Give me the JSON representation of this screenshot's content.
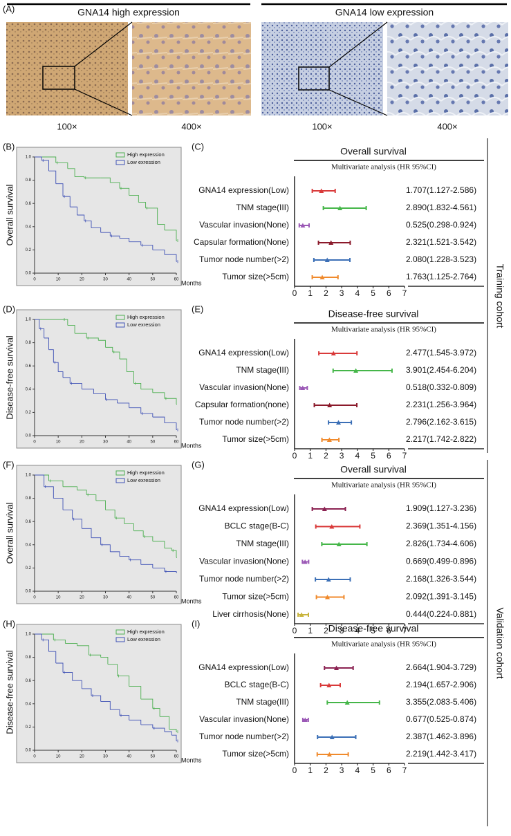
{
  "figure": {
    "panel": "(A)",
    "headers": [
      "GNA14 high expression",
      "GNA14 low expression"
    ],
    "magnifications": [
      "100×",
      "400×",
      "100×",
      "400×"
    ],
    "cohorts": [
      "Training cohort",
      "Validation cohort"
    ]
  },
  "chart_data": [
    {
      "type": "line",
      "panel": "(B)",
      "ylabel": "Overall survival",
      "xlabel": "Months",
      "xlim": [
        0,
        60
      ],
      "xticks": [
        0,
        10,
        20,
        30,
        40,
        50,
        60
      ],
      "ylim": [
        0,
        1
      ],
      "yticks": [
        {
          "value": 0,
          "label": "0.0"
        },
        {
          "value": 0.2,
          "label": "0.2"
        },
        {
          "value": 0.4,
          "label": "0.4"
        },
        {
          "value": 0.6,
          "label": "0.6"
        },
        {
          "value": 0.8,
          "label": "0.8"
        },
        {
          "value": 1,
          "label": "1.0"
        }
      ],
      "series": [
        {
          "name": "High expression",
          "color": "#4caf50",
          "x": [
            0,
            9,
            14,
            17,
            21,
            28,
            32,
            36,
            40,
            44,
            47,
            52,
            55,
            60
          ],
          "values": [
            1,
            0.95,
            0.9,
            0.83,
            0.82,
            0.82,
            0.78,
            0.73,
            0.67,
            0.61,
            0.56,
            0.42,
            0.37,
            0.28
          ]
        },
        {
          "name": "Low exression",
          "color": "#3f51b5",
          "x": [
            0,
            3,
            6,
            9,
            12,
            15,
            18,
            21,
            24,
            28,
            32,
            36,
            40,
            45,
            50,
            55,
            60
          ],
          "values": [
            1,
            0.97,
            0.88,
            0.77,
            0.66,
            0.57,
            0.5,
            0.45,
            0.39,
            0.35,
            0.32,
            0.3,
            0.27,
            0.24,
            0.2,
            0.16,
            0.1
          ]
        }
      ]
    },
    {
      "type": "forest",
      "panel": "(C)",
      "title": "Overall survival",
      "subtitle": "Multivariate analysis (HR 95%CI)",
      "xlim": [
        0,
        7
      ],
      "xticks": [
        0,
        1,
        2,
        3,
        4,
        5,
        6,
        7
      ],
      "categories": [
        "GNA14 expression(Low)",
        "TNM stage(III)",
        "Vascular invasion(None)",
        "Capsular formation(None)",
        "Tumor node number(>2)",
        "Tumor size(>5cm)"
      ],
      "values": [
        1.707,
        2.89,
        0.525,
        2.321,
        2.08,
        1.763
      ],
      "lower": [
        1.127,
        1.832,
        0.298,
        1.521,
        1.228,
        1.125
      ],
      "upper": [
        2.586,
        4.561,
        0.924,
        3.542,
        3.523,
        2.764
      ],
      "value_labels": [
        "1.707(1.127-2.586)",
        "2.890(1.832-4.561)",
        "0.525(0.298-0.924)",
        "2.321(1.521-3.542)",
        "2.080(1.228-3.523)",
        "1.763(1.125-2.764)"
      ],
      "colors": [
        "#d93a3a",
        "#45b649",
        "#9b59b6",
        "#8b1a2b",
        "#3b6fb6",
        "#f08a2c"
      ]
    },
    {
      "type": "line",
      "panel": "(D)",
      "ylabel": "Disease-free survival",
      "xlabel": "Months",
      "xlim": [
        0,
        60
      ],
      "xticks": [
        0,
        10,
        20,
        30,
        40,
        50,
        60
      ],
      "ylim": [
        0,
        1
      ],
      "yticks": [
        {
          "value": 0,
          "label": "0.0"
        },
        {
          "value": 0.2,
          "label": "0.2"
        },
        {
          "value": 0.4,
          "label": "0.4"
        },
        {
          "value": 0.6,
          "label": "0.6"
        },
        {
          "value": 0.8,
          "label": "0.8"
        },
        {
          "value": 1,
          "label": "1.0"
        }
      ],
      "series": [
        {
          "name": "High expression",
          "color": "#4caf50",
          "x": [
            0,
            12,
            14,
            17,
            22,
            27,
            30,
            33,
            36,
            39,
            42,
            45,
            50,
            55,
            60
          ],
          "values": [
            1,
            1,
            0.95,
            0.88,
            0.84,
            0.82,
            0.76,
            0.72,
            0.66,
            0.55,
            0.45,
            0.4,
            0.37,
            0.32,
            0.27
          ]
        },
        {
          "name": "Low exression",
          "color": "#3f51b5",
          "x": [
            0,
            2,
            4,
            6,
            8,
            10,
            12,
            15,
            20,
            25,
            30,
            35,
            40,
            45,
            50,
            55,
            60
          ],
          "values": [
            1,
            0.92,
            0.84,
            0.74,
            0.63,
            0.55,
            0.5,
            0.45,
            0.4,
            0.36,
            0.31,
            0.28,
            0.24,
            0.19,
            0.16,
            0.11,
            0.05
          ]
        }
      ]
    },
    {
      "type": "forest",
      "panel": "(E)",
      "title": "Disease-free survival",
      "subtitle": "Multivariate analysis (HR 95%CI)",
      "xlim": [
        0,
        7
      ],
      "xticks": [
        0,
        1,
        2,
        3,
        4,
        5,
        6,
        7
      ],
      "categories": [
        "GNA14 expression(Low)",
        "TNM stage(III)",
        "Vascular invasion(None)",
        "Capsular formation(none)",
        "Tumor node number(>2)",
        "Tumor size(>5cm)"
      ],
      "values": [
        2.477,
        3.901,
        0.518,
        2.231,
        2.796,
        2.217
      ],
      "lower": [
        1.545,
        2.454,
        0.332,
        1.256,
        2.162,
        1.742
      ],
      "upper": [
        3.972,
        6.204,
        0.809,
        3.964,
        3.615,
        2.822
      ],
      "value_labels": [
        "2.477(1.545-3.972)",
        "3.901(2.454-6.204)",
        "0.518(0.332-0.809)",
        "2.231(1.256-3.964)",
        "2.796(2.162-3.615)",
        "2.217(1.742-2.822)"
      ],
      "colors": [
        "#d93a3a",
        "#45b649",
        "#9b59b6",
        "#8b1a2b",
        "#3b6fb6",
        "#f08a2c"
      ]
    },
    {
      "type": "line",
      "panel": "(F)",
      "ylabel": "Overall survival",
      "xlabel": "Months",
      "xlim": [
        0,
        60
      ],
      "xticks": [
        0,
        10,
        20,
        30,
        40,
        50,
        60
      ],
      "ylim": [
        0,
        1
      ],
      "yticks": [
        {
          "value": 0,
          "label": "0.0"
        },
        {
          "value": 0.2,
          "label": "0.2"
        },
        {
          "value": 0.4,
          "label": "0.4"
        },
        {
          "value": 0.6,
          "label": "0.6"
        },
        {
          "value": 0.8,
          "label": "0.8"
        },
        {
          "value": 1,
          "label": "1.0"
        }
      ],
      "series": [
        {
          "name": "High expression",
          "color": "#4caf50",
          "x": [
            0,
            6,
            12,
            18,
            22,
            26,
            30,
            34,
            38,
            42,
            46,
            50,
            55,
            58,
            60
          ],
          "values": [
            1,
            0.95,
            0.9,
            0.87,
            0.83,
            0.78,
            0.7,
            0.63,
            0.58,
            0.52,
            0.47,
            0.43,
            0.37,
            0.35,
            0.29
          ]
        },
        {
          "name": "Low exression",
          "color": "#3f51b5",
          "x": [
            0,
            4,
            8,
            12,
            16,
            20,
            24,
            28,
            32,
            36,
            40,
            45,
            50,
            55,
            60
          ],
          "values": [
            1,
            0.9,
            0.8,
            0.7,
            0.62,
            0.54,
            0.46,
            0.4,
            0.34,
            0.3,
            0.27,
            0.23,
            0.2,
            0.17,
            0.16
          ]
        }
      ]
    },
    {
      "type": "forest",
      "panel": "(G)",
      "title": "Overall survival",
      "subtitle": "Multivariate analysis (HR 95%CI)",
      "xlim": [
        0,
        7
      ],
      "xticks": [
        0,
        1,
        2,
        3,
        4,
        5,
        6,
        7
      ],
      "categories": [
        "GNA14 expression(Low)",
        "BCLC stage(B-C)",
        "TNM stage(III)",
        "Vascular invasion(None)",
        "Tumor node number(>2)",
        "Tumor size(>5cm)",
        "Liver cirrhosis(None)"
      ],
      "values": [
        1.909,
        2.369,
        2.826,
        0.669,
        2.168,
        2.092,
        0.444
      ],
      "lower": [
        1.127,
        1.351,
        1.734,
        0.499,
        1.326,
        1.391,
        0.224
      ],
      "upper": [
        3.236,
        4.156,
        4.606,
        0.896,
        3.544,
        3.145,
        0.881
      ],
      "value_labels": [
        "1.909(1.127-3.236)",
        "2.369(1.351-4.156)",
        "2.826(1.734-4.606)",
        "0.669(0.499-0.896)",
        "2.168(1.326-3.544)",
        "2.092(1.391-3.145)",
        "0.444(0.224-0.881)"
      ],
      "colors": [
        "#8b2252",
        "#d93a3a",
        "#45b649",
        "#9b59b6",
        "#3b6fb6",
        "#f08a2c",
        "#c8b43c"
      ]
    },
    {
      "type": "line",
      "panel": "(H)",
      "ylabel": "Disease-free survival",
      "xlabel": "Months",
      "xlim": [
        0,
        60
      ],
      "xticks": [
        0,
        10,
        20,
        30,
        40,
        50,
        60
      ],
      "ylim": [
        0,
        1
      ],
      "yticks": [
        {
          "value": 0,
          "label": "0.0"
        },
        {
          "value": 0.2,
          "label": "0.2"
        },
        {
          "value": 0.4,
          "label": "0.4"
        },
        {
          "value": 0.6,
          "label": "0.6"
        },
        {
          "value": 0.8,
          "label": "0.8"
        },
        {
          "value": 1,
          "label": "1.0"
        }
      ],
      "series": [
        {
          "name": "High expression",
          "color": "#4caf50",
          "x": [
            0,
            8,
            13,
            18,
            23,
            28,
            31,
            35,
            40,
            45,
            50,
            53,
            57,
            60
          ],
          "values": [
            1,
            0.95,
            0.92,
            0.9,
            0.82,
            0.8,
            0.74,
            0.64,
            0.55,
            0.44,
            0.36,
            0.29,
            0.18,
            0.16
          ]
        },
        {
          "name": "Low exression",
          "color": "#3f51b5",
          "x": [
            0,
            3,
            6,
            9,
            12,
            16,
            20,
            24,
            28,
            32,
            36,
            40,
            45,
            50,
            55,
            58,
            60
          ],
          "values": [
            1,
            0.95,
            0.85,
            0.75,
            0.67,
            0.6,
            0.53,
            0.47,
            0.42,
            0.35,
            0.3,
            0.26,
            0.22,
            0.19,
            0.16,
            0.13,
            0.08
          ]
        }
      ]
    },
    {
      "type": "forest",
      "panel": "(I)",
      "title": "Disease-free survival",
      "subtitle": "Multivariate analysis (HR 95%CI)",
      "xlim": [
        0,
        7
      ],
      "xticks": [
        0,
        1,
        2,
        3,
        4,
        5,
        6,
        7
      ],
      "categories": [
        "GNA14 expression(Low)",
        "BCLC stage(B-C)",
        "TNM stage(III)",
        "Vascular invasion(None)",
        "Tumor node number(>2)",
        "Tumor size(>5cm)"
      ],
      "values": [
        2.664,
        2.194,
        3.355,
        0.677,
        2.387,
        2.219
      ],
      "lower": [
        1.904,
        1.657,
        2.083,
        0.525,
        1.462,
        1.442
      ],
      "upper": [
        3.729,
        2.906,
        5.406,
        0.874,
        3.896,
        3.417
      ],
      "value_labels": [
        "2.664(1.904-3.729)",
        "2.194(1.657-2.906)",
        "3.355(2.083-5.406)",
        "0.677(0.525-0.874)",
        "2.387(1.462-3.896)",
        "2.219(1.442-3.417)"
      ],
      "colors": [
        "#8b2252",
        "#d93a3a",
        "#45b649",
        "#9b59b6",
        "#3b6fb6",
        "#f08a2c"
      ]
    }
  ]
}
